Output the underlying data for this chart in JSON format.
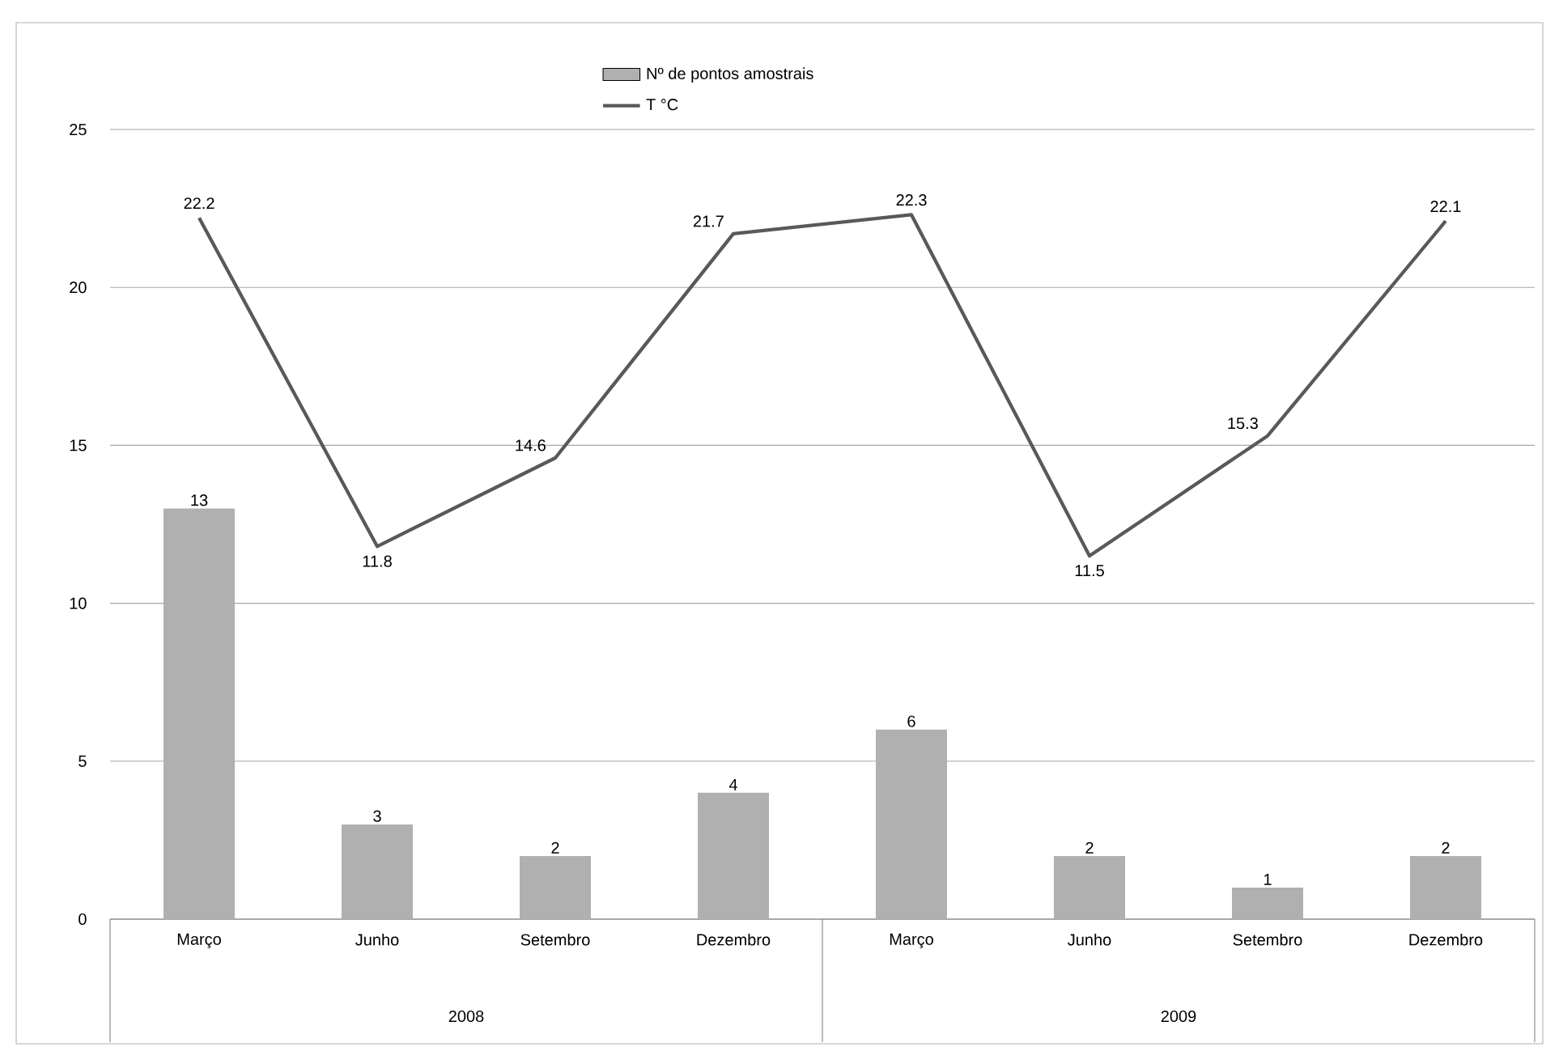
{
  "chart_data": {
    "type": "bar",
    "categories": [
      "Março",
      "Junho",
      "Setembro",
      "Dezembro",
      "Março",
      "Junho",
      "Setembro",
      "Dezembro"
    ],
    "series": [
      {
        "name": "Nº de pontos amostrais",
        "color": "#b0b0b0",
        "values": [
          13,
          3,
          2,
          4,
          6,
          2,
          1,
          2
        ]
      },
      {
        "name": "T °C",
        "type": "line",
        "color": "#595959",
        "values": [
          22.2,
          11.8,
          14.6,
          21.7,
          22.3,
          11.5,
          15.3,
          22.1
        ]
      }
    ],
    "annotations": [
      "2008",
      "2009"
    ],
    "ylim": [
      0,
      25
    ],
    "yticks": [
      0,
      5,
      10,
      15,
      20,
      25
    ],
    "grid": "y",
    "legend": "top",
    "data_labels": true,
    "marker": "none",
    "line_style": "solid"
  }
}
